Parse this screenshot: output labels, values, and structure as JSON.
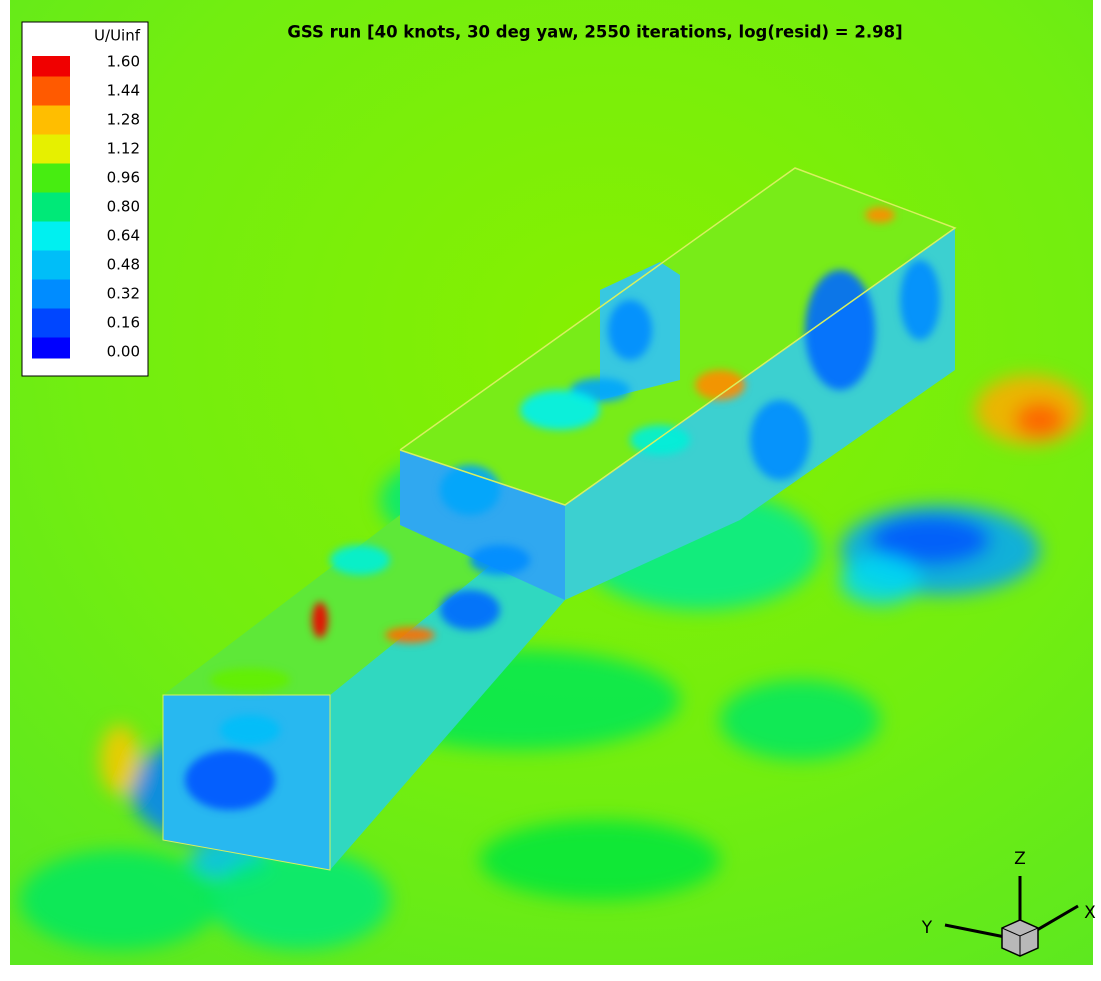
{
  "title": "GSS run [40 knots, 30 deg yaw, 2550 iterations, log(resid) = 2.98]",
  "legend": {
    "title": "U/Uinf",
    "ticks": [
      {
        "value": 1.6,
        "label": "1.60"
      },
      {
        "value": 1.44,
        "label": "1.44"
      },
      {
        "value": 1.28,
        "label": "1.28"
      },
      {
        "value": 1.12,
        "label": "1.12"
      },
      {
        "value": 0.96,
        "label": "0.96"
      },
      {
        "value": 0.8,
        "label": "0.80"
      },
      {
        "value": 0.64,
        "label": "0.64"
      },
      {
        "value": 0.48,
        "label": "0.48"
      },
      {
        "value": 0.32,
        "label": "0.32"
      },
      {
        "value": 0.16,
        "label": "0.16"
      },
      {
        "value": 0,
        "label": "0.00"
      }
    ]
  },
  "axes": {
    "x": "X",
    "y": "Y",
    "z": "Z"
  }
}
